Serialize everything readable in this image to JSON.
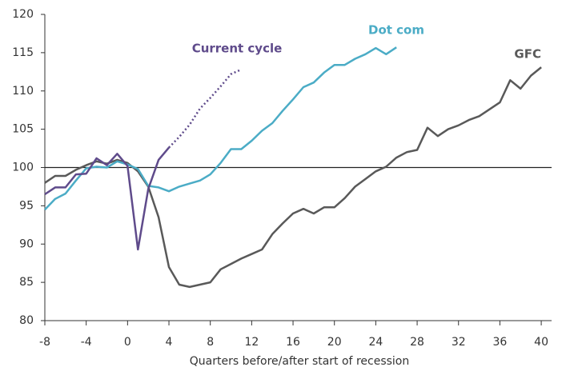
{
  "chart_data": {
    "type": "line",
    "x_label": "Quarters before/after start of recession",
    "x": [
      -8,
      -7,
      -6,
      -5,
      -4,
      -3,
      -2,
      -1,
      0,
      1,
      2,
      3,
      4,
      5,
      6,
      7,
      8,
      9,
      10,
      11,
      12,
      13,
      14,
      15,
      16,
      17,
      18,
      19,
      20,
      21,
      22,
      23,
      24,
      25,
      26,
      27,
      28,
      29,
      30,
      31,
      32,
      33,
      34,
      35,
      36,
      37,
      38,
      39,
      40
    ],
    "xlim": [
      -8,
      41
    ],
    "xticks": [
      -8,
      -4,
      0,
      4,
      8,
      12,
      16,
      20,
      24,
      28,
      32,
      36,
      40
    ],
    "ylim": [
      80,
      120
    ],
    "yticks": [
      80,
      85,
      90,
      95,
      100,
      105,
      110,
      115,
      120
    ],
    "reference_line": 100,
    "series": [
      {
        "name": "GFC",
        "color": "#595959",
        "values": [
          98,
          98.9,
          98.9,
          99.7,
          100.3,
          100.8,
          100.5,
          101,
          100.6,
          99.5,
          97.5,
          93.5,
          87,
          84.7,
          84.4,
          84.7,
          85,
          86.7,
          87.4,
          88.1,
          88.7,
          89.3,
          91.3,
          92.7,
          94,
          94.6,
          94,
          94.8,
          94.8,
          96,
          97.5,
          98.5,
          99.5,
          100.1,
          101.3,
          102,
          102.3,
          105.2,
          104.1,
          105,
          105.5,
          106.2,
          106.7,
          107.6,
          108.5,
          111.4,
          110.3,
          112,
          113.1
        ]
      },
      {
        "name": "Dot com",
        "color": "#4bacc6",
        "values": [
          94.5,
          95.9,
          96.6,
          98.3,
          99.9,
          100.1,
          100,
          100.8,
          100.4,
          99.8,
          97.6,
          97.4,
          96.9,
          97.5,
          97.9,
          98.3,
          99.1,
          100.6,
          102.4,
          102.4,
          103.5,
          104.8,
          105.8,
          107.4,
          108.9,
          110.5,
          111.1,
          112.4,
          113.4,
          113.4,
          114.2,
          114.8,
          115.6,
          114.8,
          115.7,
          null,
          null,
          null,
          null,
          null,
          null,
          null,
          null,
          null,
          null,
          null,
          null,
          null,
          null
        ]
      },
      {
        "name": "Current cycle",
        "color": "#5f4b8b",
        "dashed_from": 4,
        "values": [
          96.5,
          97.4,
          97.4,
          99.1,
          99.2,
          101.2,
          100.3,
          101.8,
          100.2,
          89.3,
          97.2,
          101,
          102.6,
          104,
          105.6,
          107.7,
          109.1,
          110.6,
          112.2,
          112.8,
          null,
          null,
          null,
          null,
          null,
          null,
          null,
          null,
          null,
          null,
          null,
          null,
          null,
          null,
          null,
          null,
          null,
          null,
          null,
          null,
          null,
          null,
          null,
          null,
          null,
          null,
          null,
          null,
          null
        ]
      }
    ]
  }
}
